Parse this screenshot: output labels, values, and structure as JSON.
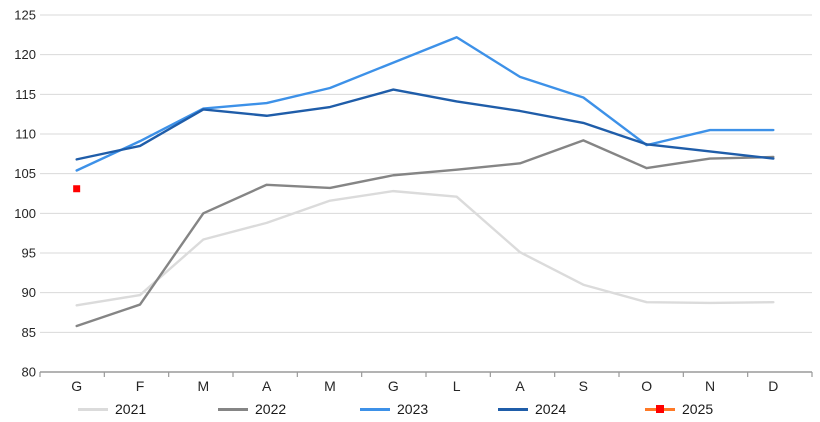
{
  "chart_data": {
    "type": "line",
    "title": "",
    "categories": [
      "G",
      "F",
      "M",
      "A",
      "M",
      "G",
      "L",
      "A",
      "S",
      "O",
      "N",
      "D"
    ],
    "y_ticks": [
      80,
      85,
      90,
      95,
      100,
      105,
      110,
      115,
      120,
      125
    ],
    "ylim": [
      80,
      125
    ],
    "grid": true,
    "legend_position": "bottom",
    "colors": {
      "gridline": "#D9D9D9",
      "axis": "#9A9A9A",
      "text": "#262626"
    },
    "series": [
      {
        "name": "2021",
        "color": "#DBDBDB",
        "values": [
          88.4,
          89.7,
          96.7,
          98.8,
          101.6,
          102.8,
          102.1,
          95.1,
          91.0,
          88.8,
          88.7,
          88.8
        ]
      },
      {
        "name": "2022",
        "color": "#858585",
        "values": [
          85.8,
          88.5,
          100.0,
          103.6,
          103.2,
          104.8,
          105.5,
          106.3,
          109.2,
          105.7,
          106.9,
          107.1
        ]
      },
      {
        "name": "2023",
        "color": "#3D91E8",
        "values": [
          105.4,
          109.1,
          113.2,
          113.9,
          115.8,
          119.0,
          122.2,
          117.2,
          114.6,
          108.6,
          110.5,
          110.5
        ]
      },
      {
        "name": "2024",
        "color": "#1F5DA9",
        "values": [
          106.8,
          108.5,
          113.1,
          112.3,
          113.4,
          115.6,
          114.1,
          112.9,
          111.4,
          108.7,
          107.8,
          106.9
        ]
      },
      {
        "name": "2025",
        "color": "#FF7926",
        "marker": "square",
        "marker_color": "#FF0000",
        "values": [
          103.1,
          null,
          null,
          null,
          null,
          null,
          null,
          null,
          null,
          null,
          null,
          null
        ]
      }
    ]
  }
}
